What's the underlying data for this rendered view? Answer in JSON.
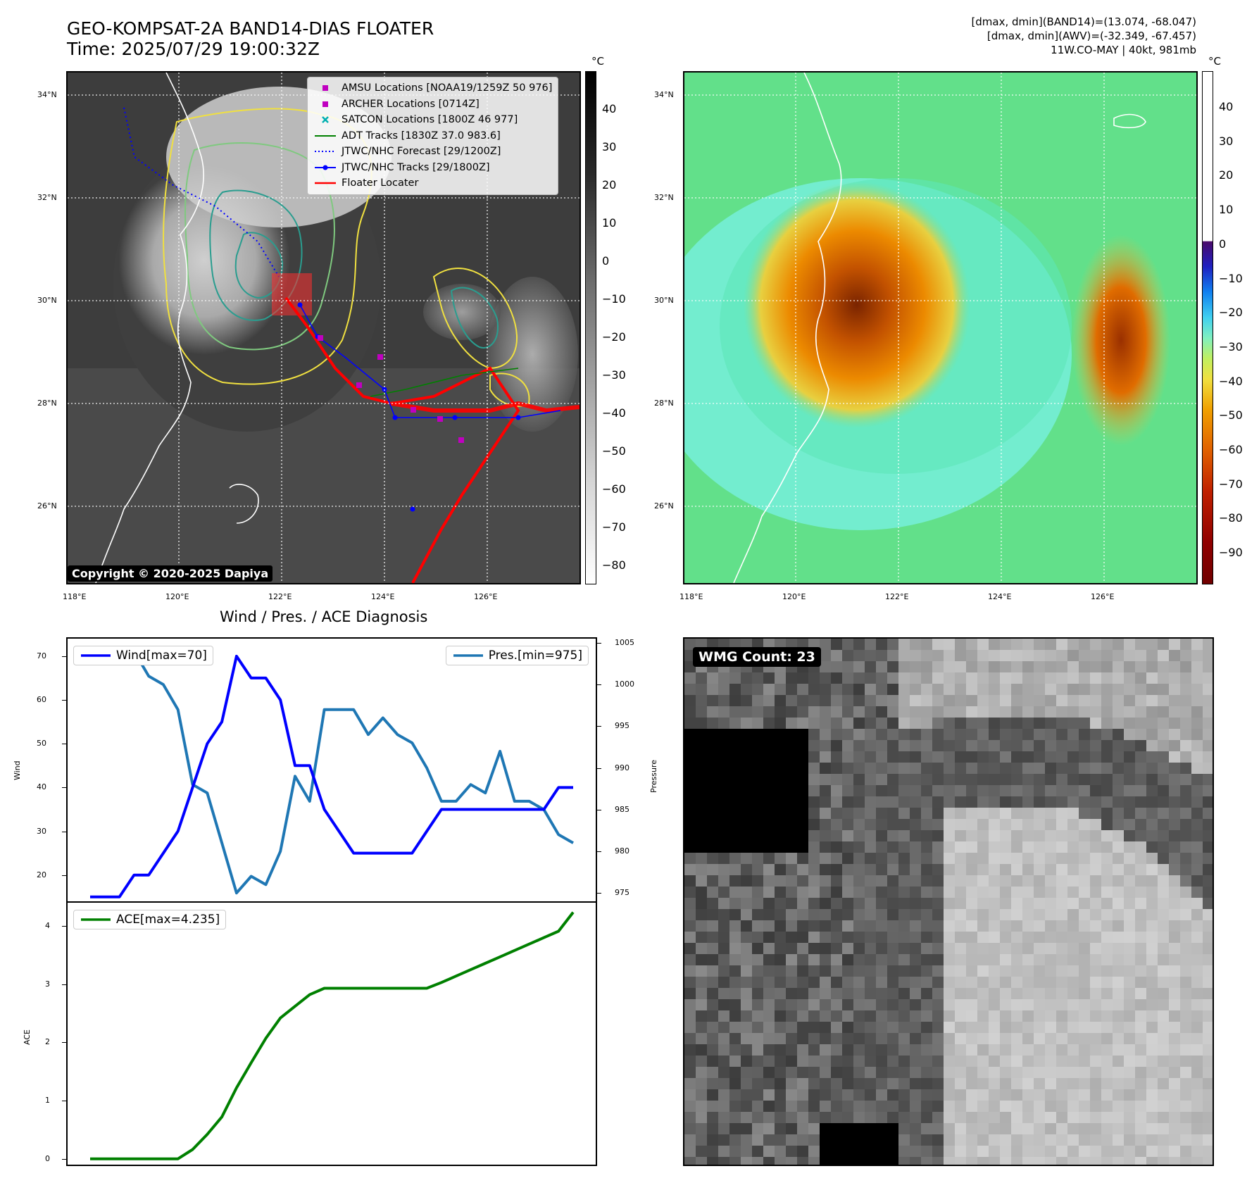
{
  "header": {
    "title_line1": "GEO-KOMPSAT-2A BAND14-DIAS FLOATER",
    "title_line2": "Time: 2025/07/29 19:00:32Z",
    "info_line1": "[dmax, dmin](BAND14)=(13.074, -68.047)",
    "info_line2": "[dmax, dmin](AWV)=(-32.349, -67.457)",
    "info_line3": "11W.CO-MAY | 40kt, 981mb"
  },
  "map_axes": {
    "lon_ticks": [
      "118°E",
      "120°E",
      "122°E",
      "124°E",
      "126°E"
    ],
    "lat_ticks": [
      "34°N",
      "32°N",
      "30°N",
      "28°N",
      "26°N"
    ]
  },
  "ir_panel": {
    "unit": "°C",
    "colorbar_ticks": [
      "40",
      "30",
      "20",
      "10",
      "0",
      "−10",
      "−20",
      "−30",
      "−40",
      "−50",
      "−60",
      "−70",
      "−80"
    ],
    "copyright": "Copyright © 2020-2025 Dapiya",
    "legend": [
      {
        "label": "AMSU Locations [NOAA19/1259Z 50 976]",
        "symbol": "square",
        "color": "#c000c0"
      },
      {
        "label": "ARCHER Locations [0714Z]",
        "symbol": "square",
        "color": "#c000c0"
      },
      {
        "label": "SATCON Locations [1800Z 46 977]",
        "symbol": "x",
        "color": "#00b0b0"
      },
      {
        "label": "ADT Tracks [1830Z 37.0 983.6]",
        "symbol": "line",
        "color": "#008000"
      },
      {
        "label": "JTWC/NHC Forecast [29/1200Z]",
        "symbol": "dotted",
        "color": "#0000ff"
      },
      {
        "label": "JTWC/NHC Tracks [29/1800Z]",
        "symbol": "line-dot",
        "color": "#0000ff"
      },
      {
        "label": "Floater Locater",
        "symbol": "line",
        "color": "#ff0000"
      }
    ]
  },
  "awv_panel": {
    "unit": "°C",
    "colorbar_ticks": [
      "40",
      "30",
      "20",
      "10",
      "0",
      "−10",
      "−20",
      "−30",
      "−40",
      "−50",
      "−60",
      "−70",
      "−80",
      "−90"
    ]
  },
  "diagnosis": {
    "title": "Wind / Pres. / ACE Diagnosis",
    "wind_legend": "Wind[max=70]",
    "pres_legend": "Pres.[min=975]",
    "ace_legend": "ACE[max=4.235]",
    "wind_ylabel": "Wind",
    "pres_ylabel": "Pressure",
    "ace_ylabel": "ACE",
    "colors": {
      "wind": "#0000ff",
      "pres": "#1f77b4",
      "ace": "#008000"
    }
  },
  "wmg_panel": {
    "label": "WMG Count: 23"
  },
  "chart_data": [
    {
      "type": "line",
      "name": "wind-pressure",
      "x": [
        0,
        1,
        2,
        3,
        4,
        5,
        6,
        7,
        8,
        9,
        10,
        11,
        12,
        13,
        14,
        15,
        16,
        17,
        18,
        19,
        20,
        21,
        22,
        23,
        24,
        25,
        26,
        27,
        28,
        29,
        30,
        31,
        32,
        33
      ],
      "series": [
        {
          "name": "Wind[max=70]",
          "axis": "left",
          "values": [
            15,
            15,
            15,
            20,
            20,
            25,
            30,
            40,
            50,
            55,
            70,
            65,
            65,
            60,
            45,
            45,
            35,
            30,
            25,
            25,
            25,
            25,
            25,
            30,
            35,
            35,
            35,
            35,
            35,
            35,
            35,
            35,
            40,
            40
          ]
        },
        {
          "name": "Pres.[min=975]",
          "axis": "right",
          "values": [
            1004,
            1004,
            1004,
            1004,
            1001,
            1000,
            997,
            988,
            987,
            981,
            975,
            977,
            976,
            980,
            989,
            986,
            997,
            997,
            997,
            994,
            996,
            994,
            993,
            990,
            986,
            986,
            988,
            987,
            992,
            986,
            986,
            985,
            982,
            981
          ]
        }
      ],
      "ylim_left": [
        14,
        74
      ],
      "yticks_left": [
        20,
        30,
        40,
        50,
        60,
        70
      ],
      "ylim_right": [
        974,
        1005.5
      ],
      "yticks_right": [
        975,
        980,
        985,
        990,
        995,
        1000,
        1005
      ],
      "grid": false,
      "legend": [
        "upper-left",
        "upper-right"
      ]
    },
    {
      "type": "line",
      "name": "ace",
      "x": [
        0,
        1,
        2,
        3,
        4,
        5,
        6,
        7,
        8,
        9,
        10,
        11,
        12,
        13,
        14,
        15,
        16,
        17,
        18,
        19,
        20,
        21,
        22,
        23,
        24,
        25,
        26,
        27,
        28,
        29,
        30,
        31,
        32,
        33
      ],
      "series": [
        {
          "name": "ACE[max=4.235]",
          "values": [
            0,
            0,
            0,
            0,
            0,
            0,
            0,
            0.16,
            0.42,
            0.72,
            1.22,
            1.65,
            2.07,
            2.42,
            2.62,
            2.82,
            2.93,
            2.93,
            2.93,
            2.93,
            2.93,
            2.93,
            2.93,
            2.93,
            3.03,
            3.14,
            3.25,
            3.36,
            3.47,
            3.58,
            3.69,
            3.8,
            3.91,
            4.235
          ]
        }
      ],
      "ylim": [
        -0.1,
        4.4
      ],
      "yticks": [
        0,
        1,
        2,
        3,
        4
      ],
      "grid": false,
      "legend": "upper-left"
    }
  ]
}
